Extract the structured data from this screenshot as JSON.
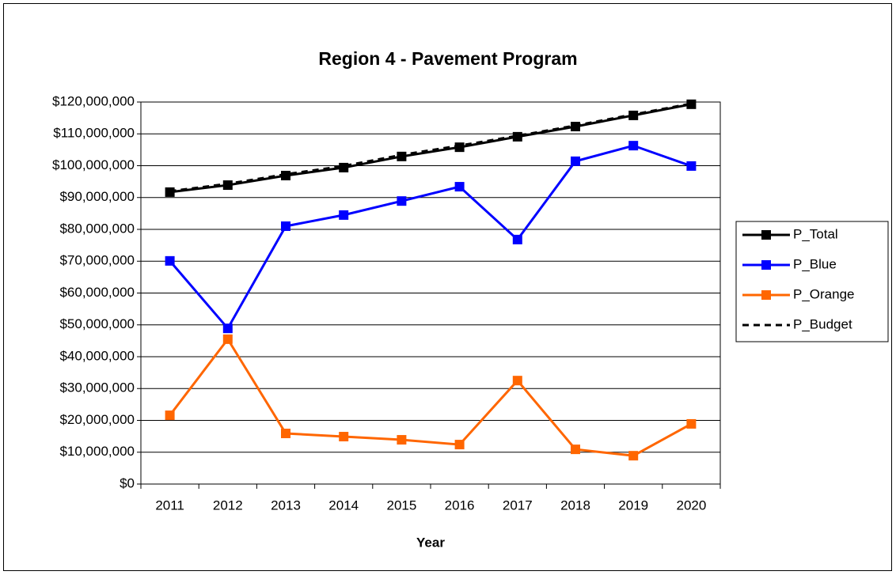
{
  "chart_data": {
    "type": "line",
    "title": "Region 4 - Pavement Program",
    "xlabel": "Year",
    "categories": [
      "2011",
      "2012",
      "2013",
      "2014",
      "2015",
      "2016",
      "2017",
      "2018",
      "2019",
      "2020"
    ],
    "series": [
      {
        "name": "P_Total",
        "color": "#000000",
        "marker": true,
        "dashed": false,
        "values": [
          91700000,
          93900000,
          96900000,
          99400000,
          102900000,
          105800000,
          109100000,
          112300000,
          115800000,
          119300000
        ]
      },
      {
        "name": "P_Blue",
        "color": "#0000ff",
        "marker": true,
        "dashed": false,
        "values": [
          70100000,
          48900000,
          81000000,
          84500000,
          88900000,
          93400000,
          76800000,
          101400000,
          106300000,
          99900000
        ]
      },
      {
        "name": "P_Orange",
        "color": "#ff6600",
        "marker": true,
        "dashed": false,
        "values": [
          21600000,
          45500000,
          15900000,
          14900000,
          13900000,
          12400000,
          32500000,
          10900000,
          8900000,
          18900000
        ]
      },
      {
        "name": "P_Budget",
        "color": "#000000",
        "marker": false,
        "dashed": true,
        "values": [
          92000000,
          94300000,
          97300000,
          99900000,
          103400000,
          106300000,
          109400000,
          112600000,
          116100000,
          119500000
        ]
      }
    ],
    "ylim": [
      0,
      120000000
    ],
    "yticks": [
      {
        "value": 0,
        "label": "$0"
      },
      {
        "value": 10000000,
        "label": "$10,000,000"
      },
      {
        "value": 20000000,
        "label": "$20,000,000"
      },
      {
        "value": 30000000,
        "label": "$30,000,000"
      },
      {
        "value": 40000000,
        "label": "$40,000,000"
      },
      {
        "value": 50000000,
        "label": "$50,000,000"
      },
      {
        "value": 60000000,
        "label": "$60,000,000"
      },
      {
        "value": 70000000,
        "label": "$70,000,000"
      },
      {
        "value": 80000000,
        "label": "$80,000,000"
      },
      {
        "value": 90000000,
        "label": "$90,000,000"
      },
      {
        "value": 100000000,
        "label": "$100,000,000"
      },
      {
        "value": 110000000,
        "label": "$110,000,000"
      },
      {
        "value": 120000000,
        "label": "$120,000,000"
      }
    ],
    "grid": true,
    "legend": "right"
  }
}
